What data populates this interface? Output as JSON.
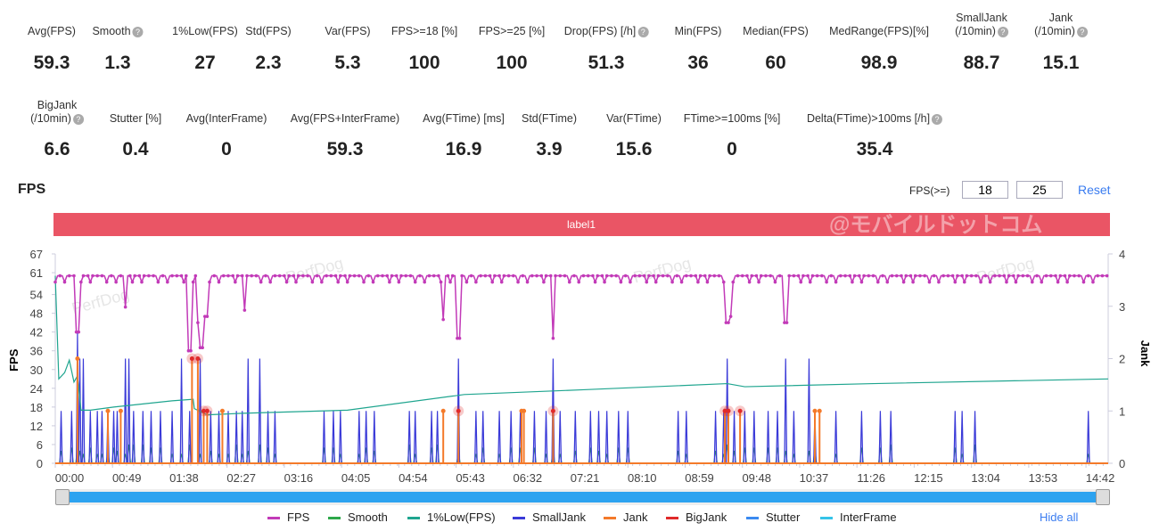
{
  "metrics_row1": [
    {
      "label": "Avg(FPS)",
      "value": "59.3"
    },
    {
      "label": "Smooth",
      "value": "1.3",
      "help": true
    },
    {
      "label": "1%Low(FPS)",
      "value": "27"
    },
    {
      "label": "Std(FPS)",
      "value": "2.3"
    },
    {
      "label": "Var(FPS)",
      "value": "5.3"
    },
    {
      "label": "FPS>=18 [%]",
      "value": "100"
    },
    {
      "label": "FPS>=25 [%]",
      "value": "100"
    },
    {
      "label": "Drop(FPS) [/h]",
      "value": "51.3",
      "help": true
    },
    {
      "label": "Min(FPS)",
      "value": "36"
    },
    {
      "label": "Median(FPS)",
      "value": "60"
    },
    {
      "label": "MedRange(FPS)[%]",
      "value": "98.9"
    },
    {
      "label": "SmallJank\n(/10min)",
      "value": "88.7",
      "help": true
    },
    {
      "label": "Jank\n(/10min)",
      "value": "15.1",
      "help": true
    }
  ],
  "metrics_row2": [
    {
      "label": "BigJank\n(/10min)",
      "value": "6.6",
      "help": true
    },
    {
      "label": "Stutter [%]",
      "value": "0.4"
    },
    {
      "label": "Avg(InterFrame)",
      "value": "0"
    },
    {
      "label": "Avg(FPS+InterFrame)",
      "value": "59.3"
    },
    {
      "label": "Avg(FTime) [ms]",
      "value": "16.9"
    },
    {
      "label": "Std(FTime)",
      "value": "3.9"
    },
    {
      "label": "Var(FTime)",
      "value": "15.6"
    },
    {
      "label": "FTime>=100ms [%]",
      "value": "0"
    },
    {
      "label": "Delta(FTime)>100ms [/h]",
      "value": "35.4",
      "help": true
    }
  ],
  "help_glyph": "?",
  "chart_title": "FPS",
  "fps_threshold_label": "FPS(>=)",
  "fps_threshold_1": "18",
  "fps_threshold_2": "25",
  "reset_label": "Reset",
  "label_bar": "label1",
  "watermark": "@モバイルドットコム",
  "hide_all": "Hide all",
  "chart_data": {
    "type": "line",
    "xlabel": "",
    "ylabel": "FPS",
    "y2label": "Jank",
    "ylim": [
      0,
      67
    ],
    "y2lim": [
      0,
      4
    ],
    "yticks": [
      0,
      6,
      12,
      18,
      24,
      30,
      36,
      42,
      48,
      54,
      61,
      67
    ],
    "y2ticks": [
      0,
      1,
      2,
      3,
      4
    ],
    "xticks": [
      "00:00",
      "00:49",
      "01:38",
      "02:27",
      "03:16",
      "04:05",
      "04:54",
      "05:43",
      "06:32",
      "07:21",
      "08:10",
      "08:59",
      "09:48",
      "10:37",
      "11:26",
      "12:15",
      "13:04",
      "13:53",
      "14:42"
    ],
    "xrange_seconds": [
      0,
      901
    ],
    "legend_position": "bottom",
    "series": [
      {
        "name": "FPS",
        "color": "#c23ab8",
        "baseline": 60,
        "dips": [
          [
            19,
            42
          ],
          [
            60,
            50
          ],
          [
            115,
            36
          ],
          [
            122,
            45
          ],
          [
            125,
            37
          ],
          [
            129,
            47
          ],
          [
            162,
            49
          ],
          [
            332,
            46
          ],
          [
            345,
            40
          ],
          [
            426,
            40
          ],
          [
            575,
            45
          ],
          [
            578,
            47
          ],
          [
            625,
            45
          ]
        ]
      },
      {
        "name": "Smooth",
        "color": "#2ea84a"
      },
      {
        "name": "1%Low(FPS)",
        "color": "#1fa58f",
        "points": [
          [
            0,
            60
          ],
          [
            3,
            27
          ],
          [
            8,
            29
          ],
          [
            12,
            33
          ],
          [
            16,
            26
          ],
          [
            19,
            28
          ],
          [
            22,
            17
          ],
          [
            30,
            17
          ],
          [
            50,
            18
          ],
          [
            100,
            20
          ],
          [
            118,
            20.5
          ],
          [
            119,
            17.5
          ],
          [
            130,
            15.5
          ],
          [
            160,
            16
          ],
          [
            250,
            17
          ],
          [
            350,
            22
          ],
          [
            450,
            23.5
          ],
          [
            575,
            25.5
          ],
          [
            590,
            24.5
          ],
          [
            700,
            25.5
          ],
          [
            901,
            27
          ]
        ]
      },
      {
        "name": "SmallJank",
        "color": "#3a3ad8",
        "axis": "right",
        "events": [
          [
            5,
            1
          ],
          [
            14,
            1
          ],
          [
            19,
            2.5
          ],
          [
            21,
            2
          ],
          [
            24,
            2
          ],
          [
            30,
            1
          ],
          [
            36,
            1
          ],
          [
            40,
            1
          ],
          [
            45,
            1
          ],
          [
            50,
            1
          ],
          [
            53,
            1
          ],
          [
            60,
            2
          ],
          [
            63,
            2
          ],
          [
            67,
            1
          ],
          [
            75,
            1
          ],
          [
            82,
            1
          ],
          [
            90,
            1
          ],
          [
            100,
            1
          ],
          [
            108,
            2
          ],
          [
            115,
            1
          ],
          [
            124,
            2
          ],
          [
            133,
            1
          ],
          [
            140,
            1
          ],
          [
            148,
            1
          ],
          [
            155,
            1
          ],
          [
            160,
            1
          ],
          [
            165,
            2
          ],
          [
            175,
            2
          ],
          [
            182,
            1
          ],
          [
            188,
            1
          ],
          [
            230,
            1
          ],
          [
            238,
            1
          ],
          [
            244,
            1
          ],
          [
            260,
            1
          ],
          [
            266,
            1
          ],
          [
            273,
            1
          ],
          [
            303,
            1
          ],
          [
            308,
            1
          ],
          [
            322,
            1
          ],
          [
            327,
            1
          ],
          [
            345,
            2
          ],
          [
            360,
            1
          ],
          [
            366,
            1
          ],
          [
            380,
            1
          ],
          [
            390,
            1
          ],
          [
            398,
            1
          ],
          [
            410,
            1
          ],
          [
            420,
            1
          ],
          [
            426,
            2
          ],
          [
            432,
            1
          ],
          [
            445,
            1
          ],
          [
            458,
            1
          ],
          [
            465,
            1
          ],
          [
            472,
            1
          ],
          [
            482,
            1
          ],
          [
            490,
            1
          ],
          [
            533,
            1
          ],
          [
            540,
            1
          ],
          [
            565,
            1
          ],
          [
            572,
            1
          ],
          [
            575,
            2
          ],
          [
            581,
            1
          ],
          [
            590,
            1
          ],
          [
            598,
            1
          ],
          [
            610,
            1
          ],
          [
            618,
            1
          ],
          [
            625,
            2
          ],
          [
            632,
            1
          ],
          [
            645,
            2
          ],
          [
            650,
            1
          ],
          [
            668,
            1
          ],
          [
            690,
            1
          ],
          [
            706,
            1
          ],
          [
            715,
            1
          ],
          [
            770,
            1
          ],
          [
            776,
            1
          ],
          [
            787,
            1
          ],
          [
            884,
            1
          ]
        ]
      },
      {
        "name": "Jank",
        "color": "#f47a2a",
        "axis": "right",
        "events": [
          [
            19,
            2
          ],
          [
            45,
            1
          ],
          [
            56,
            1
          ],
          [
            143,
            1
          ],
          [
            332,
            1
          ],
          [
            399,
            1
          ],
          [
            401,
            1
          ],
          [
            650,
            1
          ],
          [
            654,
            1
          ]
        ]
      },
      {
        "name": "BigJank",
        "color": "#e02a2a",
        "axis": "right",
        "events": [
          [
            117,
            2
          ],
          [
            122,
            2
          ],
          [
            127,
            1
          ],
          [
            130,
            1
          ],
          [
            345,
            1
          ],
          [
            426,
            1
          ],
          [
            573,
            1
          ],
          [
            576,
            1
          ],
          [
            586,
            1
          ]
        ]
      },
      {
        "name": "Stutter",
        "color": "#3a8af0"
      },
      {
        "name": "InterFrame",
        "color": "#35c3e8"
      }
    ]
  }
}
